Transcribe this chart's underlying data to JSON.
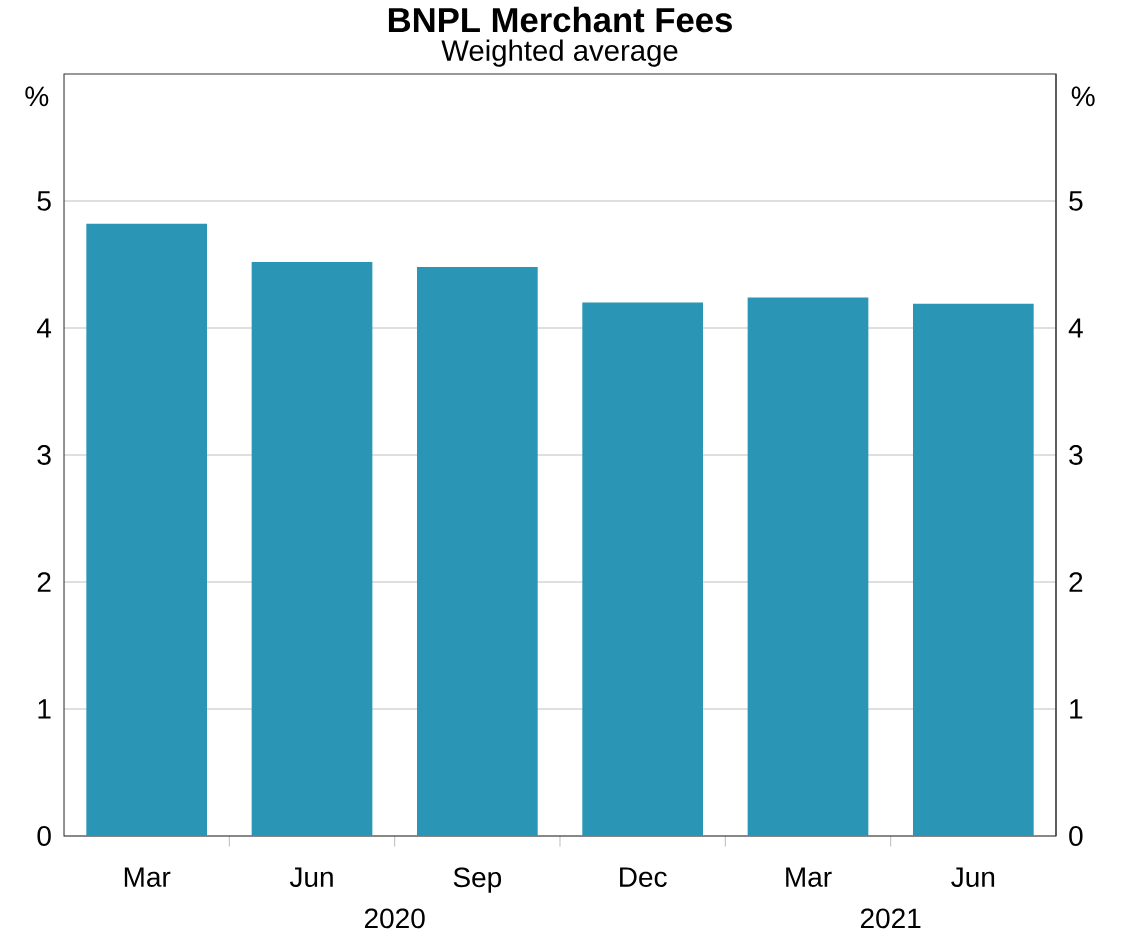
{
  "chart_data": {
    "type": "bar",
    "title": "BNPL Merchant Fees",
    "subtitle": "Weighted average",
    "categories": [
      "Mar",
      "Jun",
      "Sep",
      "Dec",
      "Mar",
      "Jun"
    ],
    "values": [
      4.82,
      4.52,
      4.48,
      4.2,
      4.24,
      4.19
    ],
    "color": "#2a95b5",
    "ylabel": "%",
    "y2label": "%",
    "ylim": [
      0,
      6
    ],
    "yticks": [
      0,
      1,
      2,
      3,
      4,
      5
    ],
    "y2lim": [
      0,
      6
    ],
    "y2ticks": [
      0,
      1,
      2,
      3,
      4,
      5
    ],
    "grid": "y",
    "annotations": [
      "2020",
      "2021"
    ]
  }
}
